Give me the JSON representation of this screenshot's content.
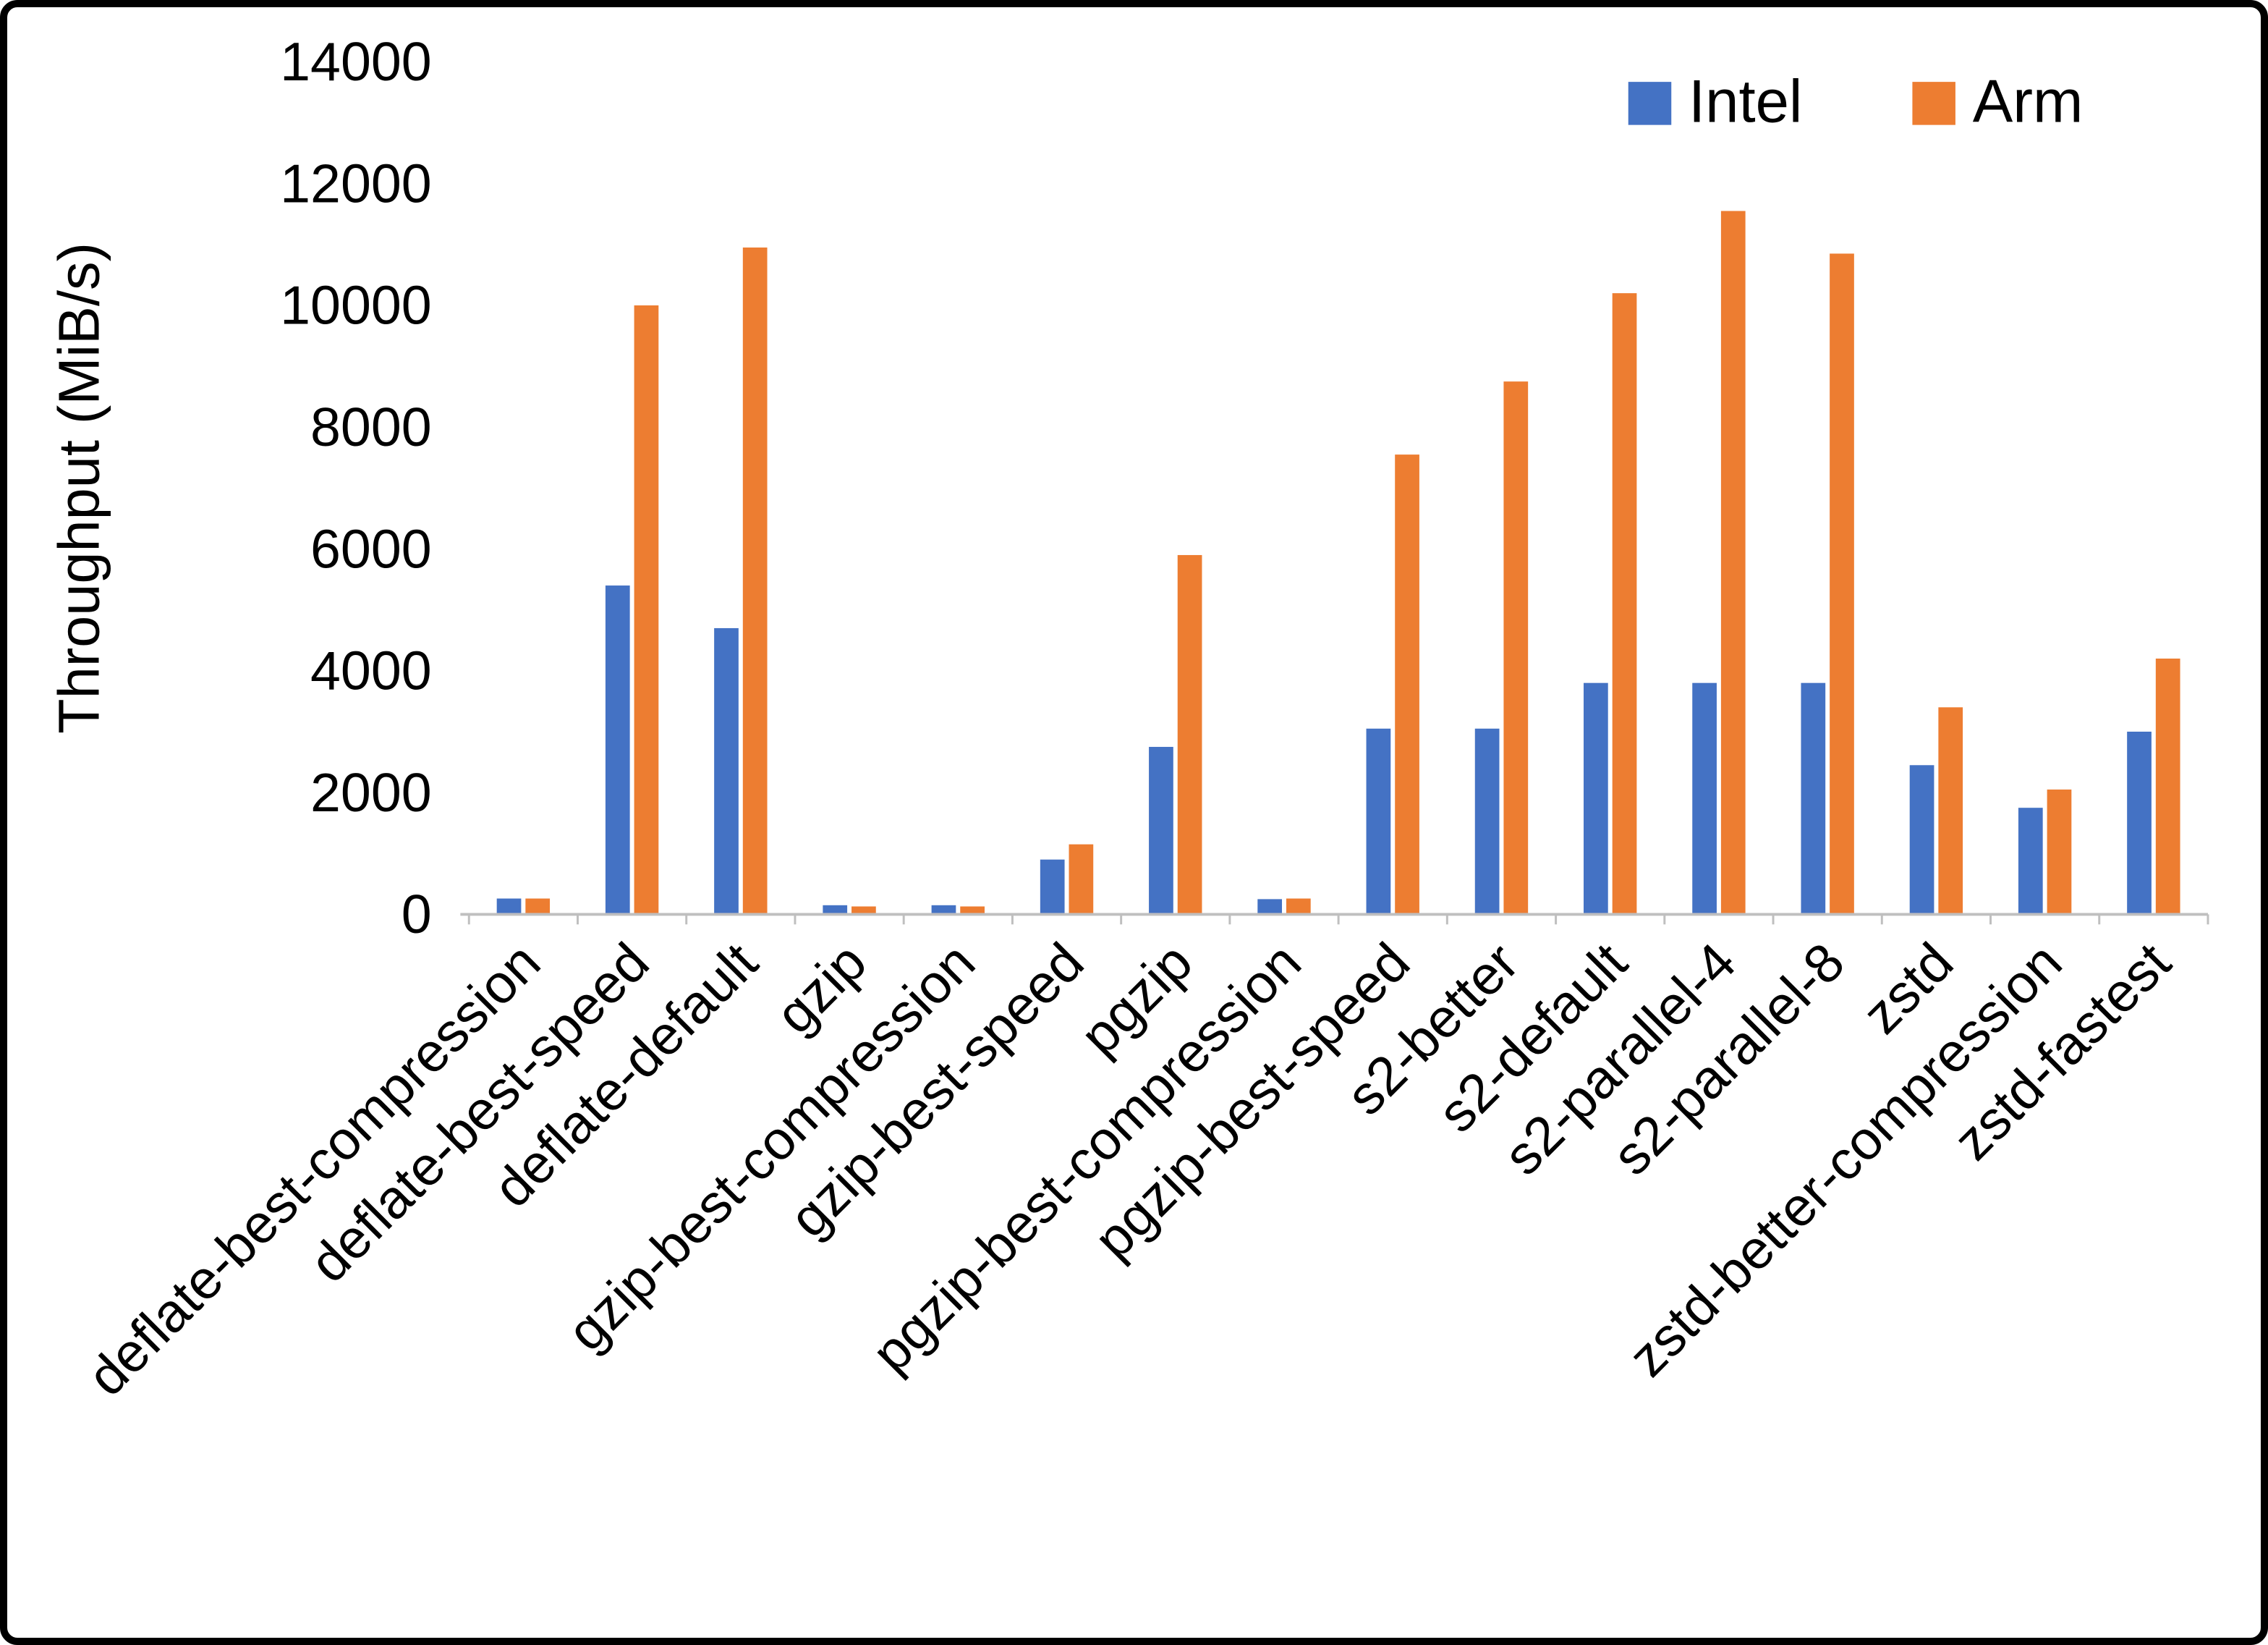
{
  "chart_data": {
    "type": "bar",
    "title": "",
    "xlabel": "",
    "ylabel": "Throughput (MiB/s)",
    "ylim": [
      0,
      14000
    ],
    "ytick_step": 2000,
    "grid": false,
    "legend_position": "top-right",
    "categories": [
      "deflate-best-compression",
      "deflate-best-speed",
      "deflate-default",
      "gzip",
      "gzip-best-compression",
      "gzip-best-speed",
      "pgzip",
      "pgzip-best-compression",
      "pgzip-best-speed",
      "s2-better",
      "s2-default",
      "s2-parallel-4",
      "s2-parallel-8",
      "zstd",
      "zstd-better-compression",
      "zstd-fastest"
    ],
    "series": [
      {
        "name": "Intel",
        "color": "#4472C4",
        "values": [
          260,
          5400,
          4700,
          150,
          150,
          900,
          2750,
          250,
          3050,
          3050,
          3800,
          3800,
          3800,
          2450,
          1750,
          3000
        ]
      },
      {
        "name": "Arm",
        "color": "#ED7D31",
        "values": [
          260,
          10000,
          10950,
          130,
          130,
          1150,
          5900,
          260,
          7550,
          8750,
          10200,
          11550,
          10850,
          3400,
          2050,
          4200
        ]
      }
    ],
    "axis_line_color": "#BFBFBF",
    "text_color": "#000000",
    "background_color": "#FFFFFF"
  }
}
